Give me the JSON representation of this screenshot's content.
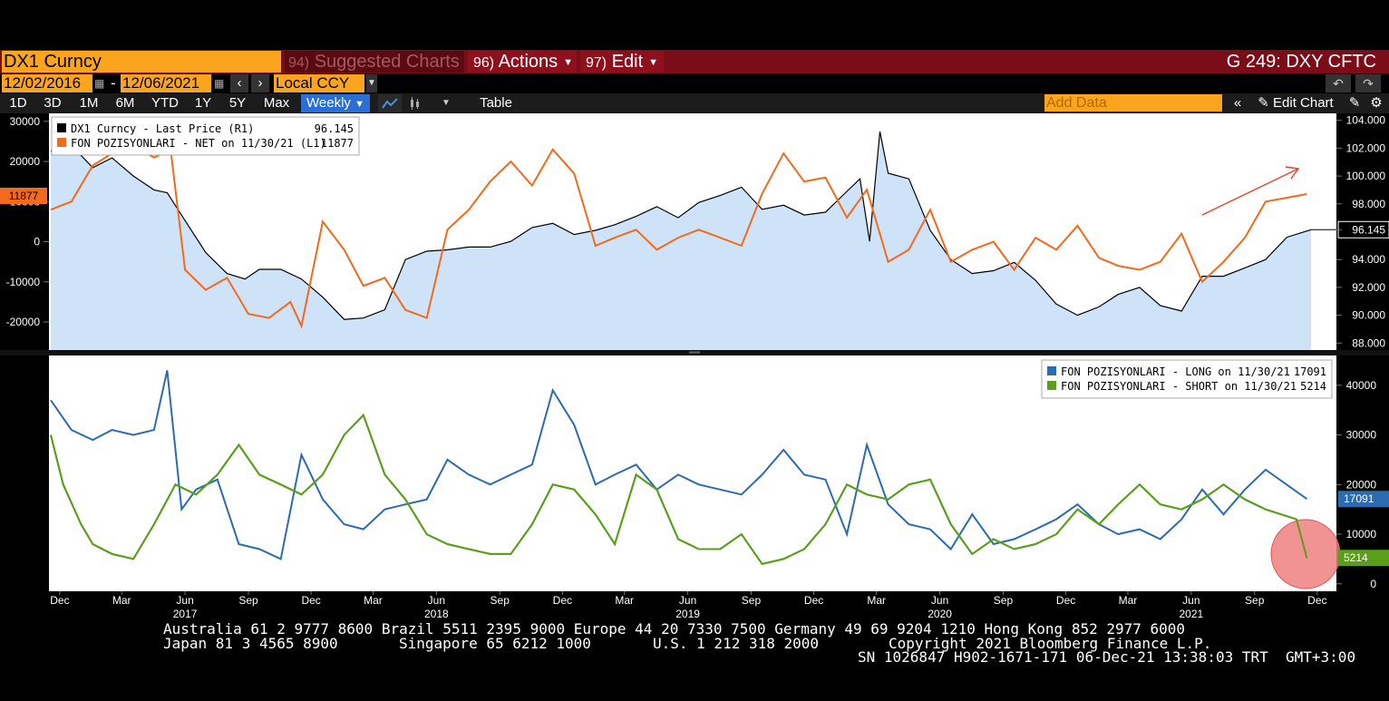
{
  "header": {
    "ticker": "DX1 Curncy",
    "menus": [
      {
        "num": "94)",
        "label": "Suggested Charts"
      },
      {
        "num": "96)",
        "label": "Actions"
      },
      {
        "num": "97)",
        "label": "Edit"
      }
    ],
    "page_code": "G 249: DXY CFTC"
  },
  "controls": {
    "start_date": "12/02/2016",
    "end_date": "12/06/2021",
    "currency": "Local CCY",
    "ranges": [
      "1D",
      "3D",
      "1M",
      "6M",
      "YTD",
      "1Y",
      "5Y",
      "Max"
    ],
    "frequency": "Weekly",
    "table_label": "Table",
    "add_data_placeholder": "Add Data",
    "edit_chart_label": "Edit Chart"
  },
  "chart_data": [
    {
      "type": "line",
      "legend": [
        {
          "name": "DX1 Curncy - Last Price (R1)",
          "value": "96.145",
          "color": "#000000"
        },
        {
          "name": "FON POZISYONLARI - NET on 11/30/21 (L1)",
          "value": "11877",
          "color": "#f26a1b"
        }
      ],
      "left_axis": {
        "ticks": [
          "30000",
          "20000",
          "10000",
          "0",
          "-10000",
          "-20000"
        ],
        "range": [
          -27000,
          32000
        ],
        "current_label": "11877"
      },
      "right_axis": {
        "ticks": [
          "104.000",
          "102.000",
          "100.000",
          "98.000",
          "96.145",
          "94.000",
          "92.000",
          "90.000",
          "88.000"
        ],
        "range": [
          87.5,
          104.5
        ],
        "current_label": "96.145"
      },
      "series": [
        {
          "name": "DX1 Curncy - Last Price (R1)",
          "axis": "right",
          "color": "#000000",
          "fill": "#cfe3f8",
          "x": [
            "2016-12-02",
            "2017-01-01",
            "2017-02-01",
            "2017-03-01",
            "2017-04-01",
            "2017-05-01",
            "2017-05-20",
            "2017-06-15",
            "2017-07-15",
            "2017-08-15",
            "2017-09-10",
            "2017-10-01",
            "2017-11-01",
            "2017-12-01",
            "2018-01-01",
            "2018-02-01",
            "2018-03-01",
            "2018-04-01",
            "2018-05-01",
            "2018-06-01",
            "2018-07-01",
            "2018-08-01",
            "2018-09-01",
            "2018-10-01",
            "2018-11-01",
            "2018-12-01",
            "2019-01-01",
            "2019-02-01",
            "2019-03-01",
            "2019-04-01",
            "2019-05-01",
            "2019-06-01",
            "2019-07-01",
            "2019-08-01",
            "2019-09-01",
            "2019-10-01",
            "2019-11-01",
            "2019-12-01",
            "2020-01-01",
            "2020-02-01",
            "2020-02-20",
            "2020-03-05",
            "2020-03-20",
            "2020-04-01",
            "2020-05-01",
            "2020-06-01",
            "2020-07-01",
            "2020-08-01",
            "2020-09-01",
            "2020-10-01",
            "2020-11-01",
            "2020-12-01",
            "2021-01-01",
            "2021-02-01",
            "2021-03-01",
            "2021-04-01",
            "2021-05-01",
            "2021-06-01",
            "2021-07-01",
            "2021-08-01",
            "2021-09-01",
            "2021-10-01",
            "2021-11-01",
            "2021-12-06"
          ],
          "values": [
            101.8,
            102.2,
            100.6,
            101.3,
            100.0,
            99.0,
            98.8,
            96.8,
            94.5,
            93.0,
            92.6,
            93.3,
            93.3,
            92.6,
            91.3,
            89.7,
            89.8,
            90.4,
            94.0,
            94.6,
            94.7,
            94.9,
            94.9,
            95.3,
            96.3,
            96.6,
            95.8,
            96.1,
            96.5,
            97.1,
            97.8,
            97.0,
            98.1,
            98.6,
            99.2,
            97.6,
            97.9,
            97.2,
            97.4,
            98.9,
            99.8,
            95.3,
            103.2,
            100.2,
            99.8,
            96.1,
            94.0,
            93.0,
            93.2,
            93.8,
            92.5,
            90.8,
            90.0,
            90.6,
            91.5,
            92.0,
            90.7,
            90.3,
            92.8,
            92.8,
            93.4,
            94.0,
            95.6,
            96.145
          ]
        },
        {
          "name": "FON POZISYONLARI - NET on 11/30/21 (L1)",
          "axis": "left",
          "color": "#f26a1b",
          "x": [
            "2016-12-02",
            "2017-01-01",
            "2017-02-01",
            "2017-03-01",
            "2017-04-01",
            "2017-05-01",
            "2017-05-25",
            "2017-06-15",
            "2017-07-15",
            "2017-08-15",
            "2017-09-15",
            "2017-10-15",
            "2017-11-15",
            "2017-12-01",
            "2018-01-01",
            "2018-02-01",
            "2018-03-01",
            "2018-04-01",
            "2018-05-01",
            "2018-06-01",
            "2018-07-01",
            "2018-08-01",
            "2018-09-01",
            "2018-10-01",
            "2018-11-01",
            "2018-12-01",
            "2019-01-01",
            "2019-02-01",
            "2019-03-01",
            "2019-04-01",
            "2019-05-01",
            "2019-06-01",
            "2019-07-01",
            "2019-08-01",
            "2019-09-01",
            "2019-10-01",
            "2019-11-01",
            "2019-12-01",
            "2020-01-01",
            "2020-02-01",
            "2020-03-01",
            "2020-04-01",
            "2020-05-01",
            "2020-06-01",
            "2020-07-01",
            "2020-08-01",
            "2020-09-01",
            "2020-10-01",
            "2020-11-01",
            "2020-12-01",
            "2021-01-01",
            "2021-02-01",
            "2021-03-01",
            "2021-04-01",
            "2021-05-01",
            "2021-06-01",
            "2021-07-01",
            "2021-08-01",
            "2021-09-01",
            "2021-10-01",
            "2021-11-30"
          ],
          "values": [
            8000,
            10000,
            19000,
            22000,
            24000,
            21000,
            23000,
            -7000,
            -12000,
            -9000,
            -18000,
            -19000,
            -15000,
            -21000,
            5000,
            -2000,
            -11000,
            -9000,
            -17000,
            -19000,
            3000,
            8000,
            15000,
            20000,
            14000,
            23000,
            17000,
            -1000,
            1000,
            3000,
            -2000,
            1000,
            3000,
            1000,
            -1000,
            12000,
            22000,
            15000,
            16000,
            6000,
            13000,
            -5000,
            -2000,
            8000,
            -5000,
            -2000,
            0,
            -7000,
            1000,
            -2000,
            4000,
            -4000,
            -6000,
            -7000,
            -5000,
            2000,
            -10000,
            -5000,
            1000,
            10000,
            11877
          ]
        }
      ],
      "annotation": {
        "type": "arrow",
        "color": "#e8402a"
      }
    },
    {
      "type": "line",
      "legend": [
        {
          "name": "FON POZISYONLARI - LONG on 11/30/21",
          "value": "17091",
          "color": "#2b6cb0"
        },
        {
          "name": "FON POZISYONLARI - SHORT on 11/30/21",
          "value": "5214",
          "color": "#5a9e1a"
        }
      ],
      "right_axis": {
        "ticks": [
          "40000",
          "30000",
          "20000",
          "10000",
          "0"
        ],
        "range": [
          -1500,
          46000
        ],
        "current_labels": [
          "17091",
          "5214"
        ]
      },
      "series": [
        {
          "name": "FON POZISYONLARI - LONG on 11/30/21",
          "color": "#2b6cb0",
          "x": [
            "2016-12-02",
            "2017-01-01",
            "2017-02-01",
            "2017-03-01",
            "2017-04-01",
            "2017-05-01",
            "2017-05-20",
            "2017-06-10",
            "2017-07-01",
            "2017-08-01",
            "2017-09-01",
            "2017-10-01",
            "2017-11-01",
            "2017-12-01",
            "2018-01-01",
            "2018-02-01",
            "2018-03-01",
            "2018-04-01",
            "2018-05-01",
            "2018-06-01",
            "2018-07-01",
            "2018-08-01",
            "2018-09-01",
            "2018-10-01",
            "2018-11-01",
            "2018-12-01",
            "2019-01-01",
            "2019-02-01",
            "2019-03-01",
            "2019-04-01",
            "2019-05-01",
            "2019-06-01",
            "2019-07-01",
            "2019-08-01",
            "2019-09-01",
            "2019-10-01",
            "2019-11-01",
            "2019-12-01",
            "2020-01-01",
            "2020-02-01",
            "2020-03-01",
            "2020-04-01",
            "2020-05-01",
            "2020-06-01",
            "2020-07-01",
            "2020-08-01",
            "2020-09-01",
            "2020-10-01",
            "2020-11-01",
            "2020-12-01",
            "2021-01-01",
            "2021-02-01",
            "2021-03-01",
            "2021-04-01",
            "2021-05-01",
            "2021-06-01",
            "2021-07-01",
            "2021-08-01",
            "2021-09-01",
            "2021-10-01",
            "2021-11-30"
          ],
          "values": [
            37000,
            31000,
            29000,
            31000,
            30000,
            31000,
            43000,
            15000,
            19000,
            21000,
            8000,
            7000,
            5000,
            26000,
            17000,
            12000,
            11000,
            15000,
            16000,
            17000,
            25000,
            22000,
            20000,
            22000,
            24000,
            39000,
            32000,
            20000,
            22000,
            24000,
            19000,
            22000,
            20000,
            19000,
            18000,
            22000,
            27000,
            22000,
            21000,
            10000,
            28000,
            16000,
            12000,
            11000,
            7000,
            14000,
            8000,
            9000,
            11000,
            13000,
            16000,
            12000,
            10000,
            11000,
            9000,
            13000,
            19000,
            14000,
            19000,
            23000,
            17091
          ]
        },
        {
          "name": "FON POZISYONLARI - SHORT on 11/30/21",
          "color": "#5a9e1a",
          "x": [
            "2016-12-02",
            "2016-12-20",
            "2017-01-15",
            "2017-02-01",
            "2017-03-01",
            "2017-04-01",
            "2017-05-01",
            "2017-06-01",
            "2017-07-01",
            "2017-08-01",
            "2017-09-01",
            "2017-10-01",
            "2017-11-01",
            "2017-12-01",
            "2018-01-01",
            "2018-02-01",
            "2018-03-01",
            "2018-04-01",
            "2018-05-01",
            "2018-06-01",
            "2018-07-01",
            "2018-08-01",
            "2018-09-01",
            "2018-10-01",
            "2018-11-01",
            "2018-12-01",
            "2019-01-01",
            "2019-02-01",
            "2019-03-01",
            "2019-04-01",
            "2019-05-01",
            "2019-06-01",
            "2019-07-01",
            "2019-08-01",
            "2019-09-01",
            "2019-10-01",
            "2019-11-01",
            "2019-12-01",
            "2020-01-01",
            "2020-02-01",
            "2020-03-01",
            "2020-04-01",
            "2020-05-01",
            "2020-06-01",
            "2020-07-01",
            "2020-08-01",
            "2020-09-01",
            "2020-10-01",
            "2020-11-01",
            "2020-12-01",
            "2021-01-01",
            "2021-02-01",
            "2021-03-01",
            "2021-04-01",
            "2021-05-01",
            "2021-06-01",
            "2021-07-01",
            "2021-08-01",
            "2021-09-01",
            "2021-10-01",
            "2021-11-15",
            "2021-11-30"
          ],
          "values": [
            30000,
            20000,
            12000,
            8000,
            6000,
            5000,
            12000,
            20000,
            18000,
            22000,
            28000,
            22000,
            20000,
            18000,
            22000,
            30000,
            34000,
            22000,
            17000,
            10000,
            8000,
            7000,
            6000,
            6000,
            12000,
            20000,
            19000,
            14000,
            8000,
            22000,
            19000,
            9000,
            7000,
            7000,
            10000,
            4000,
            5000,
            7000,
            12000,
            20000,
            18000,
            17000,
            20000,
            21000,
            12000,
            6000,
            9000,
            7000,
            8000,
            10000,
            15000,
            12000,
            16000,
            20000,
            16000,
            15000,
            17000,
            20000,
            17000,
            15000,
            13000,
            5214
          ]
        }
      ],
      "annotation": {
        "type": "circle",
        "color": "#f08080"
      }
    }
  ],
  "x_axis": {
    "month_labels": [
      "Dec",
      "Mar",
      "Jun",
      "Sep",
      "Dec",
      "Mar",
      "Jun",
      "Sep",
      "Dec",
      "Mar",
      "Jun",
      "Sep",
      "Dec",
      "Mar",
      "Jun",
      "Sep",
      "Dec",
      "Mar",
      "Jun",
      "Sep",
      "Dec"
    ],
    "year_labels": [
      "2017",
      "2018",
      "2019",
      "2020",
      "2021"
    ]
  },
  "footer": {
    "line1": "Australia 61 2 9777 8600 Brazil 5511 2395 9000 Europe 44 20 7330 7500 Germany 49 69 9204 1210 Hong Kong 852 2977 6000",
    "line2a": "Japan 81 3 4565 8900",
    "line2b": "Singapore 65 6212 1000",
    "line2c": "U.S. 1 212 318 2000",
    "line2d": "Copyright 2021 Bloomberg Finance L.P.",
    "line3": "SN 1026847 H902-1671-171 06-Dec-21 13:38:03 TRT  GMT+3:00"
  },
  "icons": {
    "calendar": "calendar-icon",
    "prev": "chevron-left-icon",
    "next": "chevron-right-icon",
    "undo": "undo-icon",
    "redo": "redo-icon",
    "gear": "gear-icon",
    "pencil": "pencil-icon"
  }
}
